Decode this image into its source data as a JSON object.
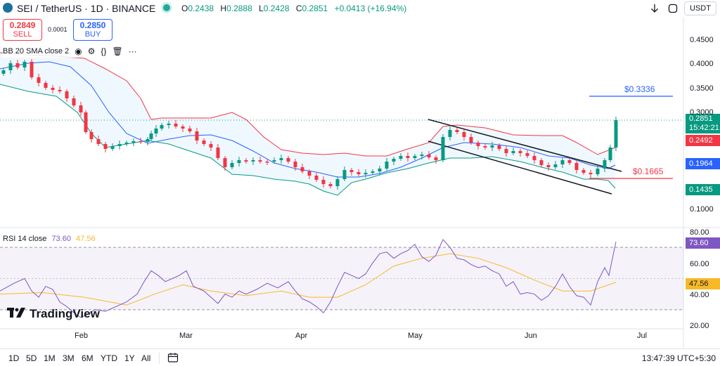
{
  "header": {
    "symbol_title": "SEI / TetherUS · 1D · BINANCE",
    "open_key": "O",
    "open_value": "0.2438",
    "high_key": "H",
    "high_value": "0.2888",
    "low_key": "L",
    "low_value": "0.2428",
    "close_key": "C",
    "close_value": "0.2851",
    "change": "+0.0413 (+16.94%)",
    "currency": "USDT",
    "icons": [
      "coin-icon",
      "live-dot-icon",
      "arrow-down-icon",
      "fullscreen-icon"
    ]
  },
  "trade": {
    "sell_price": "0.2849",
    "sell_label": "SELL",
    "buy_price": "0.2850",
    "buy_label": "BUY",
    "spread": "0.0001"
  },
  "indicator": {
    "label": "BB 20 SMA close 2",
    "icons": [
      "eye-icon",
      "settings-icon",
      "code-icon",
      "trash-icon",
      "more-icon"
    ]
  },
  "rsi": {
    "label": "RSI 14 close",
    "value": "73.60",
    "ma_value": "47.56"
  },
  "price_axis": {
    "ticks": [
      "0.4500",
      "0.4000",
      "0.3500",
      "0.3000",
      "0.2500",
      "0.2000",
      "0.1500",
      "0.1000"
    ],
    "last_price": "0.2851",
    "countdown": "15:42:21",
    "bb_upper": "0.2492",
    "bb_mid": "0.1964",
    "bb_lower": "0.1435"
  },
  "rsi_axis": {
    "ticks": [
      "80.00",
      "60.00",
      "40.00",
      "20.00"
    ],
    "rsi_tag": "73.60",
    "ma_tag": "47.56"
  },
  "annotations": {
    "target_label": "$0.3336",
    "support_label": "$0.1665"
  },
  "time_axis": [
    "Feb",
    "Mar",
    "Apr",
    "May",
    "Jun",
    "Jul"
  ],
  "branding": {
    "logo_text": "TradingView"
  },
  "bottom": {
    "ranges": [
      "1D",
      "5D",
      "1M",
      "3M",
      "6M",
      "YTD",
      "1Y",
      "All"
    ],
    "clock": "13:47:39 UTC+5:30"
  },
  "colors": {
    "up": "#089981",
    "down": "#f23645",
    "bb_upper": "#f23645",
    "bb_mid": "#2962ff",
    "bb_lower": "#089981",
    "rsi": "#7e57c2",
    "rsi_ma": "#f7b928",
    "target": "#2962ff",
    "support": "#f23645"
  }
}
